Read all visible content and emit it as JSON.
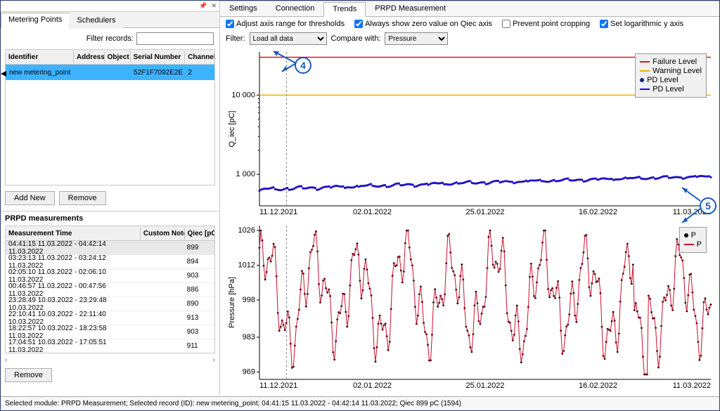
{
  "left_panel": {
    "pin_buttons": [
      "📌",
      "✕"
    ],
    "tabs": [
      "Metering Points",
      "Schedulers"
    ],
    "filter_label": "Filter records:",
    "grid": {
      "columns": [
        "Identifier",
        "Address",
        "Object",
        "Serial Number",
        "Channel"
      ],
      "rows": [
        {
          "id": "new metering_point",
          "addr": "",
          "obj": "",
          "ser": "52F1F7092E2E",
          "ch": "2",
          "selected": true
        }
      ]
    },
    "buttons": {
      "add": "Add New",
      "remove": "Remove"
    },
    "measurements": {
      "title": "PRPD measurements",
      "columns": [
        "Measurement Time",
        "Custom Note",
        "Qiec [pC]"
      ],
      "rows": [
        {
          "time": "04:41:15 11.03.2022 - 04:42:14 11.03.2022",
          "note": "",
          "qiec": "899",
          "sel": true
        },
        {
          "time": "03:23:13 11.03.2022 - 03:24:12 11.03.2022",
          "note": "",
          "qiec": "894"
        },
        {
          "time": "02:05:10 11.03.2022 - 02:06:10 11.03.2022",
          "note": "",
          "qiec": "903"
        },
        {
          "time": "00:46:57 11.03.2022 - 00:47:56 11.03.2022",
          "note": "",
          "qiec": "886"
        },
        {
          "time": "23:28:49 10.03.2022 - 23:29:48 10.03.2022",
          "note": "",
          "qiec": "890"
        },
        {
          "time": "22:10:41 10.03.2022 - 22:11:40 10.03.2022",
          "note": "",
          "qiec": "913"
        },
        {
          "time": "18:22:57 10.03.2022 - 18:23:58 11.03.2022",
          "note": "",
          "qiec": "903"
        },
        {
          "time": "17:04:51 10.03.2022 - 17:05:51 11.03.2022",
          "note": "",
          "qiec": "911"
        }
      ],
      "remove_btn": "Remove"
    }
  },
  "right_panel": {
    "tabs": [
      "Settings",
      "Connection",
      "Trends",
      "PRPD Measurement"
    ],
    "active_tab": 2,
    "checkboxes": [
      {
        "label": "Adjust axis range for thresholds",
        "checked": true
      },
      {
        "label": "Always show zero value on Qiec axis",
        "checked": true
      },
      {
        "label": "Prevent point cropping",
        "checked": false
      },
      {
        "label": "Set logarithmic y axis",
        "checked": true
      }
    ],
    "filter": {
      "label": "Filter:",
      "value": "Load all data",
      "compare_label": "Compare with:",
      "compare_value": "Pressure"
    },
    "chart1": {
      "ylabel": "Q_iec [pC]",
      "yticks": [
        {
          "v": 1000,
          "l": "1 000"
        },
        {
          "v": 10000,
          "l": "10 000"
        }
      ],
      "xticks": [
        "11.12.2021",
        "02.01.2022",
        "25.01.2022",
        "16.02.2022",
        "11.03.2022"
      ],
      "failure_level": 30000,
      "warning_level": 10000,
      "ylim": [
        400,
        35000
      ],
      "log": true,
      "pd_start": 640,
      "pd_end": 940,
      "legend": [
        {
          "type": "line",
          "color": "#e81123",
          "label": "Failure Level"
        },
        {
          "type": "line",
          "color": "#f0b100",
          "label": "Warning Level"
        },
        {
          "type": "dot",
          "color": "#1a237e",
          "label": "PD Level"
        },
        {
          "type": "line",
          "color": "#2500ff",
          "label": "PD Level"
        }
      ],
      "colors": {
        "bg": "#ffffff",
        "grid": "#444",
        "axis": "#000",
        "pd_line": "#2500ff",
        "pd_dot": "#1a1a9a",
        "failure": "#e81123",
        "warning": "#f0b100",
        "cursor": "#888"
      }
    },
    "chart2": {
      "ylabel": "Pressure [hPa]",
      "yticks": [
        969,
        983,
        998,
        1012,
        1026
      ],
      "xticks": [
        "11.12.2021",
        "02.01.2022",
        "25.01.2022",
        "16.02.2022",
        "11.03.2022"
      ],
      "ylim": [
        966,
        1028
      ],
      "legend": [
        {
          "type": "dot",
          "color": "#000000",
          "label": "P"
        },
        {
          "type": "line",
          "color": "#c8102e",
          "label": "P"
        }
      ],
      "colors": {
        "line": "#c8102e",
        "dot": "#000",
        "cursor": "#888"
      }
    }
  },
  "callouts": {
    "c4": "4",
    "c5": "5"
  },
  "status": "Selected module: PRPD Measurement; Selected record (ID): new metering_point; 04:41:15 11.03.2022 - 04:42:14 11.03.2022; Qiec 899 pC (1594)"
}
